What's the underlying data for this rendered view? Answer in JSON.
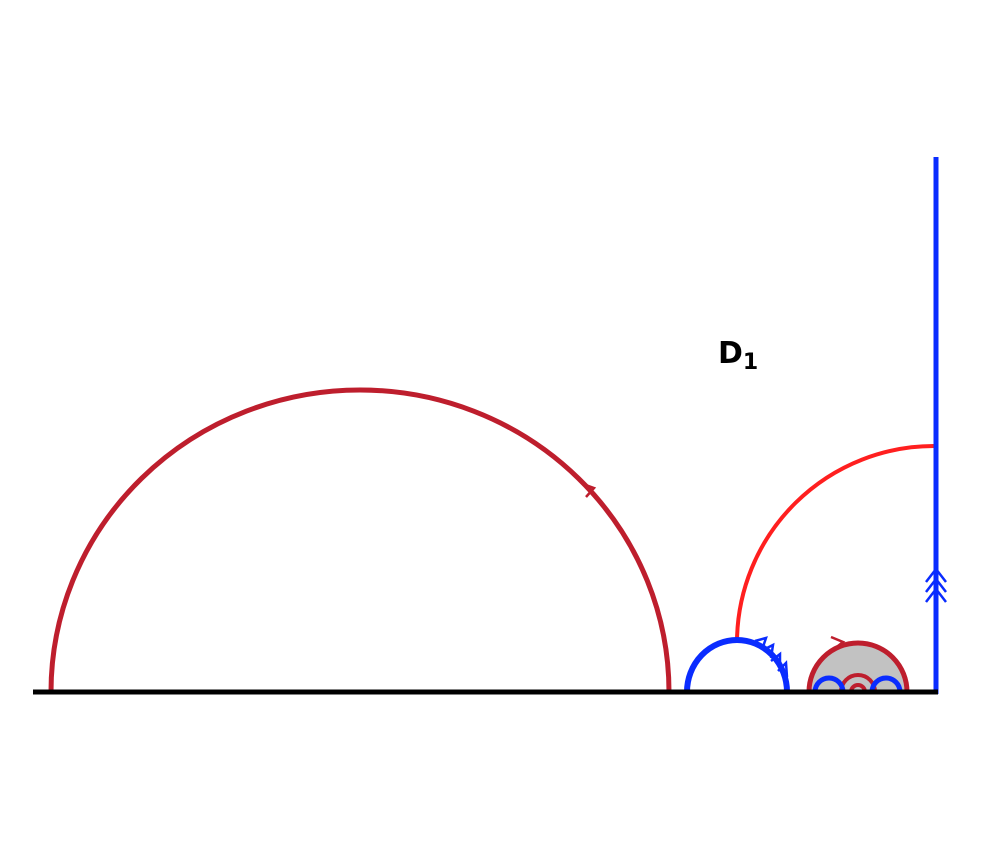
{
  "label": {
    "main": "D",
    "sub": "1"
  },
  "colors": {
    "baseline": "#000000",
    "dark_red": "#be1e2d",
    "red": "#ff1f1f",
    "blue": "#0a2cff",
    "shade": "#c2c2c2"
  },
  "arrows": {
    "large_arc": 1,
    "small_dark_arc": 1,
    "blue_arc": 3,
    "vertical_line": 3
  }
}
